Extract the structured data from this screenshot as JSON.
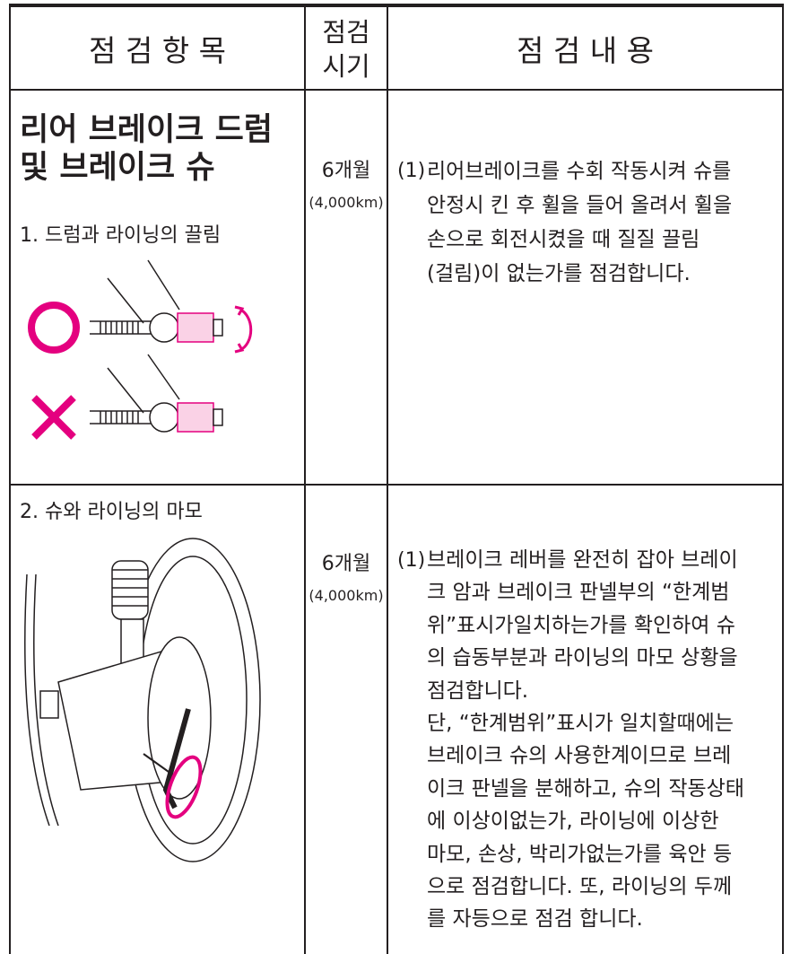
{
  "table": {
    "header": {
      "item": "점 검 항 목",
      "period": [
        "점검",
        "시기"
      ],
      "content": "점 검 내 용"
    },
    "rows": [
      {
        "title": [
          "리어  브레이크 드럼",
          "및 브레이크 슈"
        ],
        "subtitle": "1. 드럼과 라이닝의 끌림",
        "period": "6개월",
        "distance": "(4,000km)",
        "marker": "(1)",
        "lines": [
          "리어브레이크를 수회 작동시켜 슈를",
          "안정시 킨 후 휠을 들어 올려서 휠을",
          "손으로 회전시켰을 때 질질 끌림",
          "(걸림)이 없는가를 점검합니다."
        ]
      },
      {
        "subtitle": "2. 슈와 라이닝의 마모",
        "period": "6개월",
        "distance": "(4,000km)",
        "marker": "(1)",
        "lines": [
          "브레이크 레버를 완전히 잡아 브레이",
          "크 암과 브레이크 판넬부의 “한계범",
          "위”표시가일치하는가를 확인하여 슈",
          "의 습동부분과 라이닝의 마모 상황을",
          "점검합니다.",
          "단, “한계범위”표시가 일치할때에는",
          "브레이크 슈의 사용한계이므로 브레",
          "이크 판넬을 분해하고, 슈의 작동상태",
          "에 이상이없는가, 라이닝에 이상한",
          "마모, 손상, 박리가없는가를 육안 등",
          "으로 점검합니다. 또, 라이닝의 두께",
          "를 자등으로 점검 합니다."
        ]
      }
    ]
  }
}
